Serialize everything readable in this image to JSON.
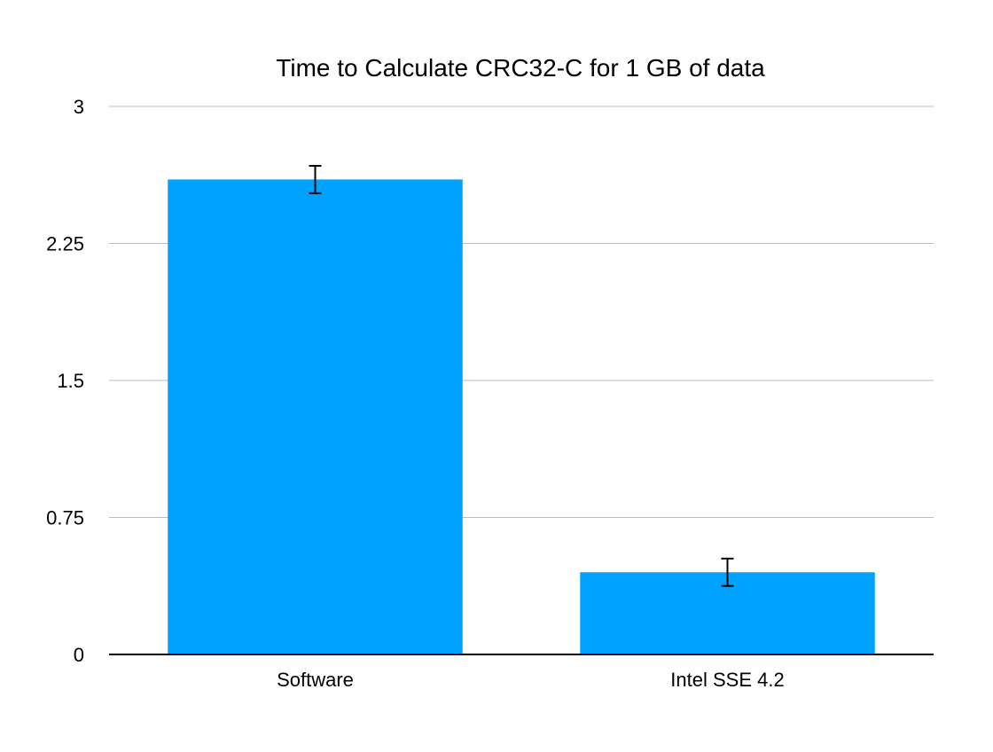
{
  "chart_data": {
    "type": "bar",
    "title": "Time to Calculate CRC32-C for 1 GB of data",
    "xlabel": "",
    "ylabel": "",
    "categories": [
      "Software",
      "Intel SSE 4.2"
    ],
    "series": [
      {
        "values": [
          2.6,
          0.45
        ],
        "error": [
          0.075,
          0.075
        ]
      }
    ],
    "ylim": [
      0,
      3
    ],
    "yticks": [
      0,
      0.75,
      1.5,
      2.25,
      3
    ],
    "ytick_labels": [
      "0",
      "0.75",
      "1.5",
      "2.25",
      "3"
    ],
    "grid": true,
    "legend": "none",
    "bar_color": "#00a2ff"
  }
}
